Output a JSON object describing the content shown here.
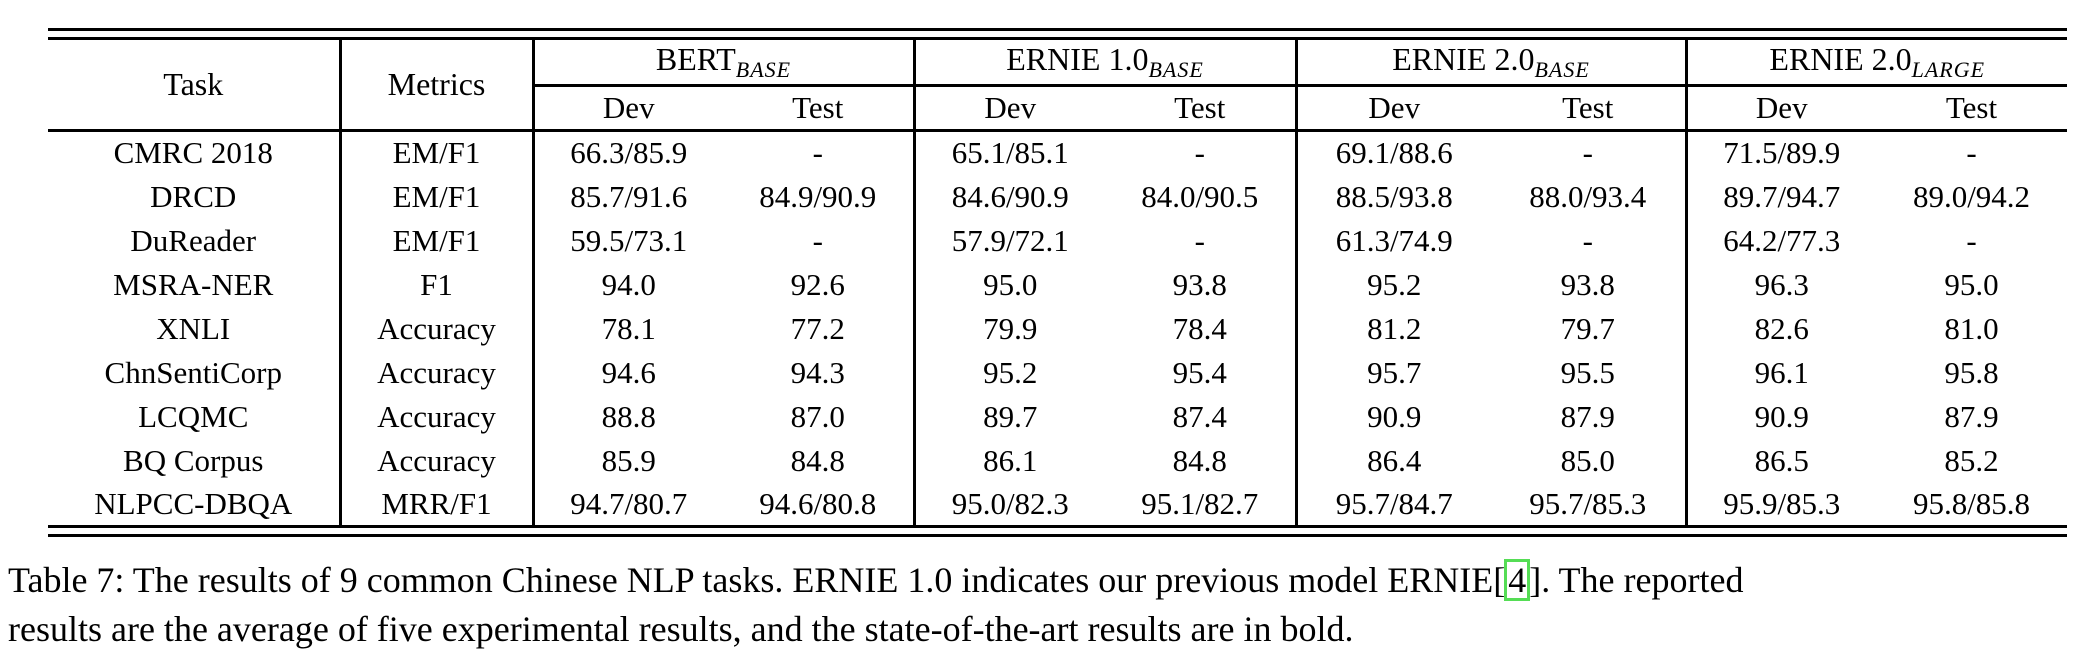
{
  "table": {
    "header": {
      "task_label": "Task",
      "metrics_label": "Metrics",
      "groups": [
        {
          "name": "BERT",
          "subscript": "BASE"
        },
        {
          "name": "ERNIE 1.0",
          "subscript": "BASE"
        },
        {
          "name": "ERNIE 2.0",
          "subscript": "BASE"
        },
        {
          "name": "ERNIE 2.0",
          "subscript": "LARGE"
        }
      ],
      "dev_label": "Dev",
      "test_label": "Test"
    },
    "rows": [
      {
        "task": "CMRC 2018",
        "metric": "EM/F1",
        "values": [
          "66.3/85.9",
          "-",
          "65.1/85.1",
          "-",
          "69.1/88.6",
          "-",
          "71.5/89.9",
          "-"
        ],
        "bold": [
          false,
          false,
          false,
          false,
          false,
          false,
          true,
          false
        ]
      },
      {
        "task": "DRCD",
        "metric": "EM/F1",
        "values": [
          "85.7/91.6",
          "84.9/90.9",
          "84.6/90.9",
          "84.0/90.5",
          "88.5/93.8",
          "88.0/93.4",
          "89.7/94.7",
          "89.0/94.2"
        ],
        "bold": [
          false,
          false,
          false,
          false,
          false,
          false,
          true,
          true
        ]
      },
      {
        "task": "DuReader",
        "metric": "EM/F1",
        "values": [
          "59.5/73.1",
          "-",
          "57.9/72.1",
          "-",
          "61.3/74.9",
          "-",
          "64.2/77.3",
          "-"
        ],
        "bold": [
          false,
          false,
          false,
          false,
          false,
          false,
          true,
          false
        ]
      },
      {
        "task": "MSRA-NER",
        "metric": "F1",
        "values": [
          "94.0",
          "92.6",
          "95.0",
          "93.8",
          "95.2",
          "93.8",
          "96.3",
          "95.0"
        ],
        "bold": [
          false,
          false,
          false,
          false,
          false,
          false,
          true,
          true
        ]
      },
      {
        "task": "XNLI",
        "metric": "Accuracy",
        "values": [
          "78.1",
          "77.2",
          "79.9",
          "78.4",
          "81.2",
          "79.7",
          "82.6",
          "81.0"
        ],
        "bold": [
          false,
          false,
          false,
          false,
          false,
          false,
          true,
          true
        ]
      },
      {
        "task": "ChnSentiCorp",
        "metric": "Accuracy",
        "values": [
          "94.6",
          "94.3",
          "95.2",
          "95.4",
          "95.7",
          "95.5",
          "96.1",
          "95.8"
        ],
        "bold": [
          false,
          false,
          false,
          false,
          false,
          false,
          true,
          true
        ]
      },
      {
        "task": "LCQMC",
        "metric": "Accuracy",
        "values": [
          "88.8",
          "87.0",
          "89.7",
          "87.4",
          "90.9",
          "87.9",
          "90.9",
          "87.9"
        ],
        "bold": [
          false,
          false,
          false,
          false,
          true,
          true,
          true,
          true
        ]
      },
      {
        "task": "BQ Corpus",
        "metric": "Accuracy",
        "values": [
          "85.9",
          "84.8",
          "86.1",
          "84.8",
          "86.4",
          "85.0",
          "86.5",
          "85.2"
        ],
        "bold": [
          false,
          false,
          false,
          false,
          false,
          false,
          true,
          true
        ]
      },
      {
        "task": "NLPCC-DBQA",
        "metric": "MRR/F1",
        "values": [
          "94.7/80.7",
          "94.6/80.8",
          "95.0/82.3",
          "95.1/82.7",
          "95.7/84.7",
          "95.7/85.3",
          "95.9/85.3",
          "95.8/85.8"
        ],
        "bold": [
          false,
          false,
          false,
          false,
          false,
          false,
          true,
          true
        ]
      }
    ]
  },
  "caption": {
    "line1_pre": "Table 7: The results of 9 common Chinese NLP tasks. ERNIE 1.0 indicates our previous model ERNIE[",
    "citation": "4",
    "line1_post": "]. The reported",
    "line2": "results are the average of five experimental results, and the state-of-the-art results are in bold.",
    "citation_box_color": "#55dd55"
  }
}
